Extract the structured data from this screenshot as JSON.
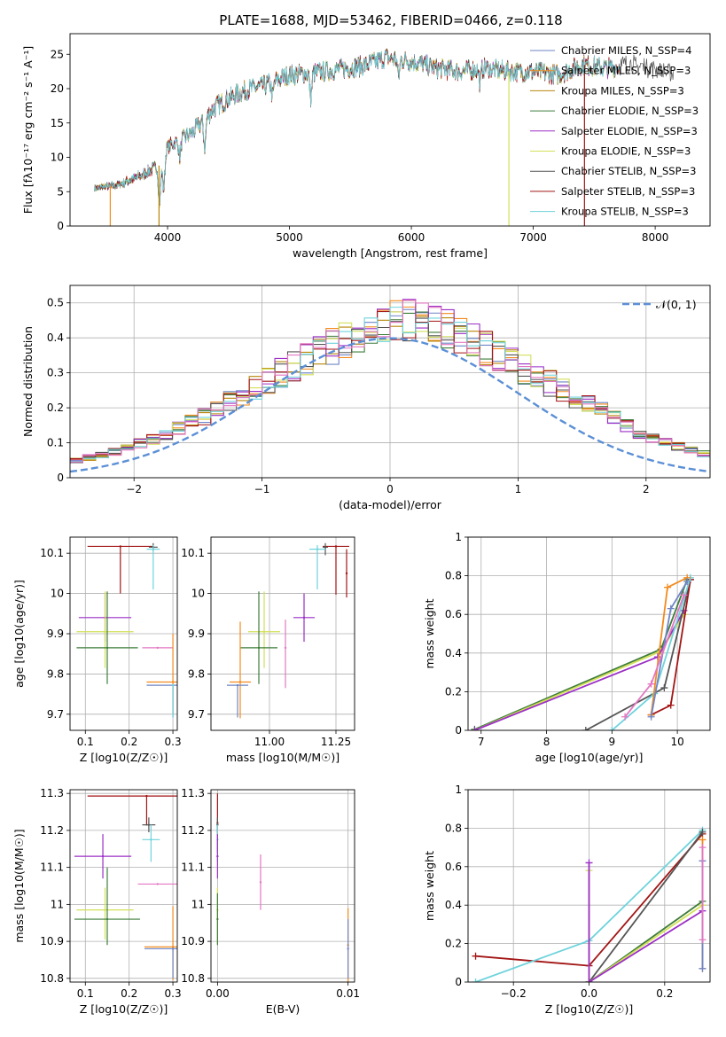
{
  "figure_title": "PLATE=1688, MJD=53462, FIBERID=0466, z=0.118",
  "colors": {
    "chabrier_miles": "#6f86c6",
    "salpeter_miles": "#f28b1e",
    "kroupa_miles": "#b8860b",
    "chabrier_elodie": "#3e7d3a",
    "salpeter_elodie": "#9b2fc6",
    "kroupa_elodie": "#d3e05a",
    "chabrier_stelib": "#555555",
    "salpeter_stelib": "#a31515",
    "kroupa_stelib": "#6fd3dc",
    "pink": "#e377c2",
    "normal_curve": "#5b8fd6"
  },
  "chart_data": [
    {
      "id": "spectrum",
      "type": "line",
      "title": "PLATE=1688, MJD=53462, FIBERID=0466, z=0.118",
      "xlabel": "wavelength [Angstrom, rest frame]",
      "ylabel": "Flux [fλ10⁻¹⁷ erg cm⁻² s⁻¹ A⁻¹]",
      "xlim": [
        3200,
        8450
      ],
      "ylim": [
        0,
        28
      ],
      "xticks": [
        4000,
        5000,
        6000,
        7000,
        8000
      ],
      "yticks": [
        0,
        5,
        10,
        15,
        20,
        25
      ],
      "grid": false,
      "legend_position": "right",
      "legend": [
        "Chabrier MILES, N_SSP=4",
        "Salpeter MILES, N_SSP=3",
        "Kroupa MILES, N_SSP=3",
        "Chabrier ELODIE, N_SSP=3",
        "Salpeter ELODIE, N_SSP=3",
        "Kroupa ELODIE, N_SSP=3",
        "Chabrier STELIB, N_SSP=3",
        "Salpeter STELIB, N_SSP=3",
        "Kroupa STELIB, N_SSP=3"
      ],
      "continuum": {
        "x": [
          3400,
          3600,
          3800,
          3950,
          4000,
          4200,
          4400,
          4600,
          4800,
          5000,
          5200,
          5400,
          5600,
          5800,
          6000,
          6200,
          6400,
          6600,
          6800,
          7000,
          7200,
          7400,
          7600,
          7800,
          8000,
          8150
        ],
        "y": [
          5.5,
          6.0,
          7.5,
          9.0,
          11.5,
          13.5,
          17.5,
          19.5,
          20.5,
          22.0,
          22.3,
          22.8,
          23.3,
          24.5,
          24.0,
          23.0,
          22.5,
          23.0,
          22.5,
          22.5,
          22.0,
          23.5,
          23.0,
          23.5,
          23.0,
          22.0
        ]
      },
      "absorption_features": [
        {
          "x": 3934,
          "depth": 5.5
        },
        {
          "x": 3969,
          "depth": 4.5
        },
        {
          "x": 4101,
          "depth": 2.5
        },
        {
          "x": 4305,
          "depth": 4.0
        },
        {
          "x": 4861,
          "depth": 2.0
        },
        {
          "x": 5175,
          "depth": 3.5
        },
        {
          "x": 5895,
          "depth": 2.5
        },
        {
          "x": 6563,
          "depth": 2.0
        }
      ],
      "model_spikes_to_zero": [
        3530,
        3930,
        6800,
        7420
      ]
    },
    {
      "id": "residuals",
      "type": "histogram",
      "xlabel": "(data-model)/error",
      "ylabel": "Normed distribution",
      "xlim": [
        -2.5,
        2.5
      ],
      "ylim": [
        0,
        0.55
      ],
      "xticks": [
        -2,
        -1,
        0,
        1,
        2
      ],
      "yticks": [
        0,
        0.1,
        0.2,
        0.3,
        0.4,
        0.5
      ],
      "grid": true,
      "legend": "𝒩(0, 1)",
      "legend_position": "top-right",
      "bin_width": 0.1,
      "envelope": [
        0.03,
        0.03,
        0.033,
        0.038,
        0.044,
        0.05,
        0.058,
        0.066,
        0.074,
        0.085,
        0.098,
        0.11,
        0.125,
        0.14,
        0.158,
        0.175,
        0.195,
        0.218,
        0.24,
        0.26,
        0.28,
        0.3,
        0.32,
        0.34,
        0.36,
        0.375,
        0.39,
        0.41,
        0.43,
        0.445,
        0.45,
        0.455,
        0.45,
        0.44,
        0.43,
        0.41,
        0.39,
        0.37,
        0.35,
        0.33,
        0.31,
        0.29,
        0.27,
        0.25,
        0.23,
        0.21,
        0.19,
        0.17,
        0.15,
        0.13,
        0.115,
        0.1,
        0.088,
        0.078,
        0.068,
        0.06,
        0.052,
        0.045,
        0.04,
        0.035
      ]
    },
    {
      "id": "age_vs_Z",
      "type": "scatter",
      "xlabel": "Z [log10(Z/Z☉)]",
      "ylabel": "age  [log10(age/yr)]",
      "xlim": [
        0.065,
        0.31
      ],
      "ylim": [
        9.66,
        10.14
      ],
      "xticks": [
        0.1,
        0.2,
        0.3
      ],
      "yticks": [
        9.7,
        9.8,
        9.9,
        10.0,
        10.1
      ],
      "grid": true,
      "points": [
        {
          "series": "salpeter_stelib",
          "x": 0.18,
          "y": 10.117,
          "xerr": 0.075,
          "yerr_lo": 0.117,
          "yerr_hi": 0
        },
        {
          "series": "chabrier_stelib",
          "x": 0.255,
          "y": 10.115,
          "xerr": 0.01,
          "yerr_lo": 0.01,
          "yerr_hi": 0.01
        },
        {
          "series": "kroupa_stelib",
          "x": 0.255,
          "y": 10.11,
          "xerr": 0.015,
          "yerr_lo": 0.1,
          "yerr_hi": 0.01
        },
        {
          "series": "salpeter_elodie",
          "x": 0.145,
          "y": 9.94,
          "xerr": 0.06,
          "yerr_lo": 0.06,
          "yerr_hi": 0.06
        },
        {
          "series": "kroupa_elodie",
          "x": 0.145,
          "y": 9.905,
          "xerr": 0.065,
          "yerr_lo": 0.09,
          "yerr_hi": 0.1
        },
        {
          "series": "chabrier_elodie",
          "x": 0.15,
          "y": 9.865,
          "xerr": 0.07,
          "yerr_lo": 0.09,
          "yerr_hi": 0.14
        },
        {
          "series": "pink",
          "x": 0.265,
          "y": 9.865,
          "xerr": 0.035,
          "yerr_lo": 0,
          "yerr_hi": 0
        },
        {
          "series": "salpeter_miles",
          "x": 0.3,
          "y": 9.78,
          "xerr": 0.06,
          "yerr_lo": 0.08,
          "yerr_hi": 0.12
        },
        {
          "series": "chabrier_miles",
          "x": 0.3,
          "y": 9.772,
          "xerr": 0.06,
          "yerr_lo": 0.08,
          "yerr_hi": 0
        },
        {
          "series": "kroupa_stelib",
          "x": 0.3,
          "y": 9.772,
          "xerr": 0,
          "yerr_lo": 0.08,
          "yerr_hi": 0
        }
      ]
    },
    {
      "id": "age_vs_mass",
      "type": "scatter",
      "xlabel": "mass [log10(M/M☉)]",
      "ylabel": "",
      "xlim": [
        10.78,
        11.32
      ],
      "ylim": [
        9.66,
        10.14
      ],
      "xticks": [
        11.0,
        11.25
      ],
      "xtick_labels": [
        "11.00",
        "11.25"
      ],
      "yticks": [
        9.7,
        9.8,
        9.9,
        10.0,
        10.1
      ],
      "grid": true,
      "points": [
        {
          "series": "salpeter_stelib",
          "x": 11.25,
          "y": 10.117,
          "xerr": 0.05,
          "yerr_lo": 0.12,
          "yerr_hi": 0
        },
        {
          "series": "chabrier_stelib",
          "x": 11.21,
          "y": 10.115,
          "xerr": 0.01,
          "yerr_lo": 0.02,
          "yerr_hi": 0.01
        },
        {
          "series": "kroupa_stelib",
          "x": 11.18,
          "y": 10.11,
          "xerr": 0.03,
          "yerr_lo": 0.1,
          "yerr_hi": 0.01
        },
        {
          "series": "salpeter_elodie",
          "x": 11.13,
          "y": 9.94,
          "xerr": 0.04,
          "yerr_lo": 0.06,
          "yerr_hi": 0.06
        },
        {
          "series": "pink",
          "x": 11.06,
          "y": 9.865,
          "xerr": 0,
          "yerr_lo": 0.1,
          "yerr_hi": 0.07
        },
        {
          "series": "kroupa_elodie",
          "x": 10.98,
          "y": 9.905,
          "xerr": 0.06,
          "yerr_lo": 0.09,
          "yerr_hi": 0.1
        },
        {
          "series": "chabrier_elodie",
          "x": 10.96,
          "y": 9.865,
          "xerr": 0.07,
          "yerr_lo": 0.09,
          "yerr_hi": 0.14
        },
        {
          "series": "salpeter_miles",
          "x": 10.89,
          "y": 9.78,
          "xerr": 0.04,
          "yerr_lo": 0.09,
          "yerr_hi": 0.15
        },
        {
          "series": "chabrier_miles",
          "x": 10.88,
          "y": 9.772,
          "xerr": 0.04,
          "yerr_lo": 0.08,
          "yerr_hi": 0
        },
        {
          "series": "salpeter_stelib",
          "x": 11.29,
          "y": 10.05,
          "xerr": 0,
          "yerr_lo": 0.06,
          "yerr_hi": 0.06
        }
      ]
    },
    {
      "id": "mass_weight_vs_age",
      "type": "line",
      "xlabel": "age  [log10(age/yr)]",
      "ylabel": "mass weight",
      "xlim": [
        6.8,
        10.5
      ],
      "ylim": [
        0,
        1
      ],
      "xticks": [
        7,
        8,
        9,
        10
      ],
      "yticks": [
        0,
        0.2,
        0.4,
        0.6,
        0.8,
        1.0
      ],
      "grid": true,
      "series": [
        {
          "name": "chabrier_elodie",
          "x": [
            6.9,
            9.75,
            10.15
          ],
          "y": [
            0.005,
            0.42,
            0.78
          ]
        },
        {
          "name": "kroupa_elodie",
          "x": [
            6.9,
            9.75,
            10.1
          ],
          "y": [
            0.0,
            0.41,
            0.6
          ]
        },
        {
          "name": "salpeter_elodie",
          "x": [
            6.9,
            9.7,
            10.1
          ],
          "y": [
            0.0,
            0.38,
            0.62
          ]
        },
        {
          "name": "chabrier_stelib",
          "x": [
            8.6,
            9.8,
            10.2
          ],
          "y": [
            0.0,
            0.22,
            0.78
          ]
        },
        {
          "name": "salpeter_stelib",
          "x": [
            9.6,
            9.9,
            10.2
          ],
          "y": [
            0.08,
            0.13,
            0.78
          ]
        },
        {
          "name": "kroupa_stelib",
          "x": [
            9.0,
            9.65,
            10.2
          ],
          "y": [
            0.0,
            0.19,
            0.79
          ]
        },
        {
          "name": "salpeter_miles",
          "x": [
            9.6,
            9.85,
            10.15
          ],
          "y": [
            0.08,
            0.74,
            0.79
          ]
        },
        {
          "name": "chabrier_miles",
          "x": [
            9.6,
            9.9,
            10.15
          ],
          "y": [
            0.07,
            0.63,
            0.77
          ]
        },
        {
          "name": "pink",
          "x": [
            9.2,
            9.6,
            10.1
          ],
          "y": [
            0.07,
            0.24,
            0.7
          ]
        }
      ]
    },
    {
      "id": "mass_vs_Z",
      "type": "scatter",
      "xlabel": "Z [log10(Z/Z☉)]",
      "ylabel": "mass [log10(M/M☉)]",
      "xlim": [
        0.065,
        0.31
      ],
      "ylim": [
        10.79,
        11.31
      ],
      "xticks": [
        0.1,
        0.2,
        0.3
      ],
      "yticks": [
        10.8,
        10.9,
        11.0,
        11.1,
        11.2,
        11.3
      ],
      "grid": true,
      "points": [
        {
          "series": "salpeter_stelib",
          "x": 0.24,
          "y": 11.293,
          "xerr": 0.135,
          "yerr_lo": 0.08,
          "yerr_hi": 0
        },
        {
          "series": "chabrier_stelib",
          "x": 0.245,
          "y": 11.215,
          "xerr": 0.015,
          "yerr_lo": 0.02,
          "yerr_hi": 0.02
        },
        {
          "series": "kroupa_stelib",
          "x": 0.25,
          "y": 11.175,
          "xerr": 0.02,
          "yerr_lo": 0.06,
          "yerr_hi": 0.04
        },
        {
          "series": "salpeter_elodie",
          "x": 0.14,
          "y": 11.13,
          "xerr": 0.065,
          "yerr_lo": 0.06,
          "yerr_hi": 0.06
        },
        {
          "series": "pink",
          "x": 0.265,
          "y": 11.055,
          "xerr": 0.045,
          "yerr_lo": 0,
          "yerr_hi": 0
        },
        {
          "series": "kroupa_elodie",
          "x": 0.145,
          "y": 10.985,
          "xerr": 0.065,
          "yerr_lo": 0.08,
          "yerr_hi": 0.06
        },
        {
          "series": "chabrier_elodie",
          "x": 0.15,
          "y": 10.96,
          "xerr": 0.075,
          "yerr_lo": 0.07,
          "yerr_hi": 0.14
        },
        {
          "series": "salpeter_miles",
          "x": 0.3,
          "y": 10.885,
          "xerr": 0.065,
          "yerr_lo": 0.09,
          "yerr_hi": 0.11
        },
        {
          "series": "chabrier_miles",
          "x": 0.3,
          "y": 10.88,
          "xerr": 0.065,
          "yerr_lo": 0.08,
          "yerr_hi": 0
        }
      ]
    },
    {
      "id": "mass_vs_ebv",
      "type": "scatter",
      "xlabel": "E(B-V)",
      "ylabel": "",
      "xlim": [
        -0.0005,
        0.0105
      ],
      "ylim": [
        10.79,
        11.31
      ],
      "xticks": [
        0.0,
        0.01
      ],
      "xtick_labels": [
        "0.00",
        "0.01"
      ],
      "yticks": [
        10.8,
        10.9,
        11.0,
        11.1,
        11.2,
        11.3
      ],
      "grid": true,
      "points": [
        {
          "series": "salpeter_stelib",
          "x": 0.0,
          "y": 11.22,
          "xerr": 0,
          "yerr_lo": 0.08,
          "yerr_hi": 0.08
        },
        {
          "series": "chabrier_stelib",
          "x": 0.0,
          "y": 11.215,
          "xerr": 0,
          "yerr_lo": 0.02,
          "yerr_hi": 0.02
        },
        {
          "series": "kroupa_stelib",
          "x": 0.0,
          "y": 11.175,
          "xerr": 0,
          "yerr_lo": 0.06,
          "yerr_hi": 0.04
        },
        {
          "series": "salpeter_elodie",
          "x": 0.0,
          "y": 11.13,
          "xerr": 0,
          "yerr_lo": 0.06,
          "yerr_hi": 0.06
        },
        {
          "series": "kroupa_elodie",
          "x": 0.0,
          "y": 10.985,
          "xerr": 0,
          "yerr_lo": 0.09,
          "yerr_hi": 0.06
        },
        {
          "series": "chabrier_elodie",
          "x": 0.0,
          "y": 10.96,
          "xerr": 0,
          "yerr_lo": 0.07,
          "yerr_hi": 0.07
        },
        {
          "series": "pink",
          "x": 0.0033,
          "y": 11.06,
          "xerr": 0,
          "yerr_lo": 0.075,
          "yerr_hi": 0.075
        },
        {
          "series": "salpeter_miles",
          "x": 0.01,
          "y": 10.89,
          "xerr": 0,
          "yerr_lo": 0.1,
          "yerr_hi": 0.1
        },
        {
          "series": "chabrier_miles",
          "x": 0.01,
          "y": 10.88,
          "xerr": 0,
          "yerr_lo": 0.08,
          "yerr_hi": 0.08
        }
      ]
    },
    {
      "id": "mass_weight_vs_Z",
      "type": "line",
      "xlabel": "Z [log10(Z/Z☉)]",
      "ylabel": "mass weight",
      "xlim": [
        -0.32,
        0.32
      ],
      "ylim": [
        0,
        1
      ],
      "xticks": [
        -0.2,
        0.0,
        0.2
      ],
      "xtick_labels": [
        "−0.2",
        "0.0",
        "0.2"
      ],
      "yticks": [
        0,
        0.2,
        0.4,
        0.6,
        0.8,
        1.0
      ],
      "grid": true,
      "series": [
        {
          "name": "salpeter_stelib",
          "x": [
            -0.3,
            0.0,
            0.3
          ],
          "y": [
            0.135,
            0.085,
            0.77
          ]
        },
        {
          "name": "kroupa_stelib",
          "x": [
            -0.3,
            0.0,
            0.3
          ],
          "y": [
            0.0,
            0.215,
            0.79
          ]
        },
        {
          "name": "chabrier_stelib",
          "x": [
            0.0,
            0.0,
            0.3
          ],
          "y": [
            0.0,
            0.0,
            0.78
          ]
        },
        {
          "name": "chabrier_elodie",
          "x": [
            0.0,
            0.3
          ],
          "y": [
            0.0,
            0.42
          ]
        },
        {
          "name": "kroupa_elodie",
          "x": [
            0.0,
            0.0,
            0.3
          ],
          "y": [
            0.58,
            0.0,
            0.4
          ]
        },
        {
          "name": "salpeter_elodie",
          "x": [
            0.0,
            0.0,
            0.3
          ],
          "y": [
            0.62,
            0.0,
            0.37
          ]
        },
        {
          "name": "salpeter_miles",
          "x": [
            0.3,
            0.3
          ],
          "y": [
            0.07,
            0.74
          ]
        },
        {
          "name": "chabrier_miles",
          "x": [
            0.3,
            0.3
          ],
          "y": [
            0.07,
            0.63
          ]
        },
        {
          "name": "pink",
          "x": [
            0.3,
            0.3
          ],
          "y": [
            0.22,
            0.7
          ]
        }
      ]
    }
  ]
}
